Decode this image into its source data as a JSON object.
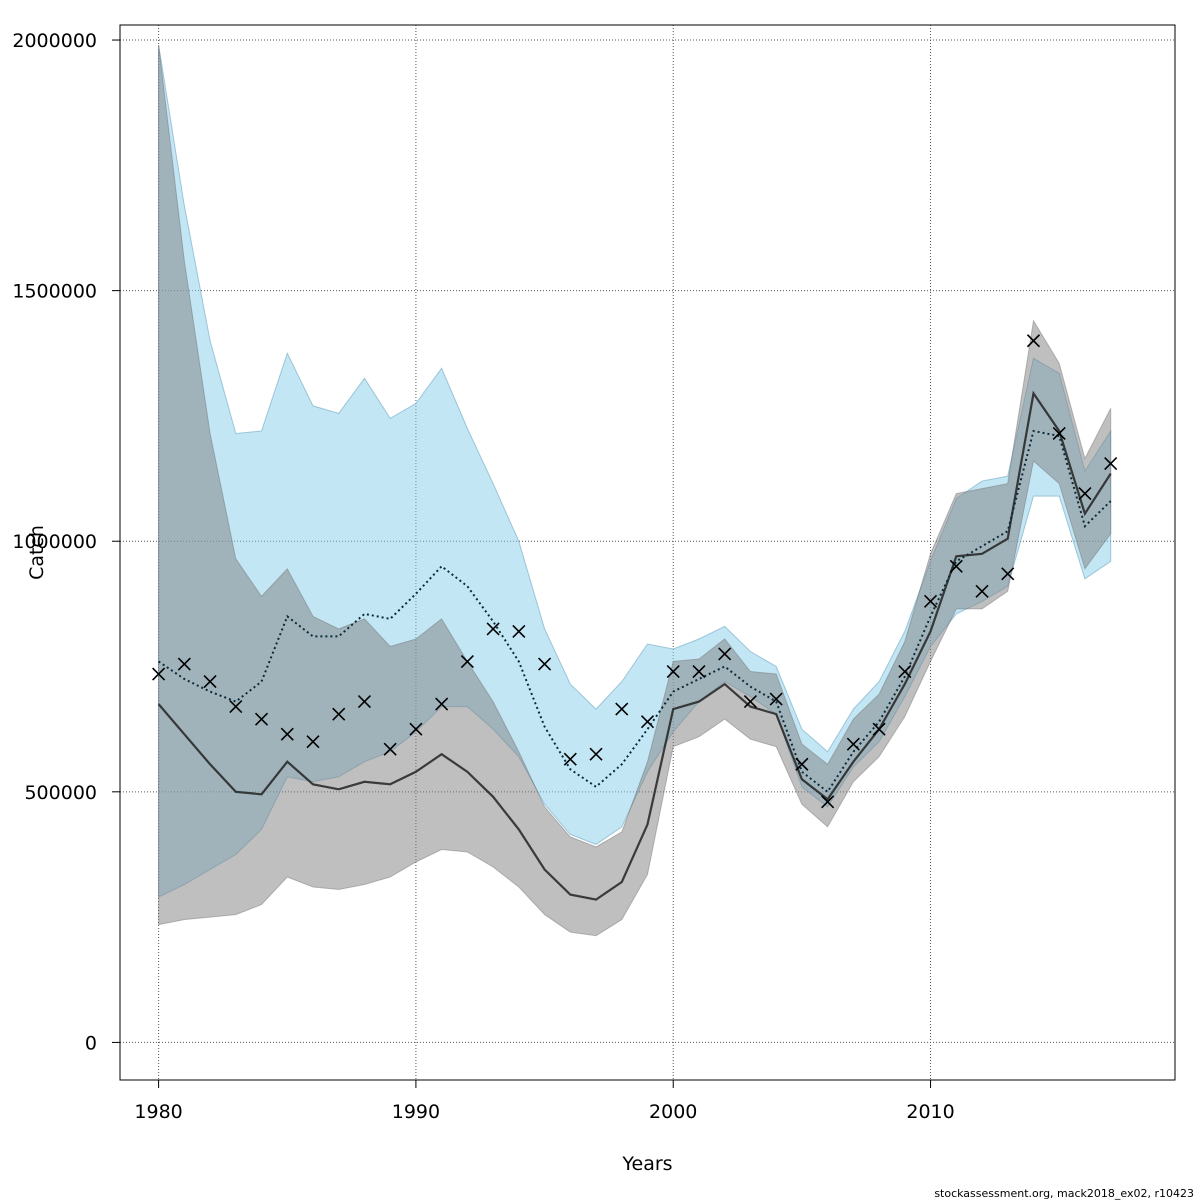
{
  "chart_data": {
    "type": "line",
    "xlabel": "Years",
    "ylabel": "Catch",
    "xlim": [
      1978.5,
      2019.5
    ],
    "ylim": [
      -75000,
      2030000
    ],
    "x_ticks": [
      1980,
      1990,
      2000,
      2010
    ],
    "y_ticks": [
      0,
      500000,
      1000000,
      1500000,
      2000000
    ],
    "y_tick_labels": [
      "0",
      "500000",
      "1000000",
      "1500000",
      "2000000"
    ],
    "grid": true,
    "colors": {
      "blue_band": "#87CEEB",
      "grey_band": "#808080",
      "dotted_line": "#0a2a3a",
      "solid_line": "#222222",
      "observed": "#000000"
    },
    "years": [
      1980,
      1981,
      1982,
      1983,
      1984,
      1985,
      1986,
      1987,
      1988,
      1989,
      1990,
      1991,
      1992,
      1993,
      1994,
      1995,
      1996,
      1997,
      1998,
      1999,
      2000,
      2001,
      2002,
      2003,
      2004,
      2005,
      2006,
      2007,
      2008,
      2009,
      2010,
      2011,
      2012,
      2013,
      2014,
      2015,
      2016,
      2017
    ],
    "series": [
      {
        "style": "dotted",
        "values": [
          760000,
          725000,
          700000,
          680000,
          720000,
          850000,
          810000,
          810000,
          855000,
          845000,
          895000,
          950000,
          910000,
          840000,
          760000,
          630000,
          545000,
          510000,
          555000,
          625000,
          700000,
          725000,
          750000,
          710000,
          680000,
          540000,
          500000,
          580000,
          640000,
          730000,
          850000,
          960000,
          990000,
          1020000,
          1220000,
          1210000,
          1030000,
          1080000
        ],
        "lower": [
          290000,
          315000,
          345000,
          375000,
          425000,
          530000,
          520000,
          530000,
          560000,
          580000,
          620000,
          670000,
          670000,
          625000,
          570000,
          475000,
          415000,
          395000,
          430000,
          540000,
          620000,
          680000,
          720000,
          690000,
          655000,
          510000,
          470000,
          550000,
          600000,
          690000,
          790000,
          855000,
          880000,
          910000,
          1090000,
          1090000,
          925000,
          960000
        ],
        "upper": [
          1990000,
          1670000,
          1400000,
          1215000,
          1220000,
          1375000,
          1270000,
          1255000,
          1325000,
          1245000,
          1275000,
          1345000,
          1225000,
          1115000,
          1000000,
          825000,
          715000,
          665000,
          720000,
          795000,
          785000,
          805000,
          830000,
          780000,
          750000,
          625000,
          580000,
          665000,
          720000,
          820000,
          960000,
          1085000,
          1120000,
          1130000,
          1365000,
          1335000,
          1140000,
          1220000
        ]
      },
      {
        "style": "solid",
        "values": [
          675000,
          615000,
          555000,
          500000,
          495000,
          560000,
          515000,
          505000,
          520000,
          515000,
          540000,
          575000,
          540000,
          490000,
          425000,
          345000,
          295000,
          285000,
          320000,
          435000,
          665000,
          680000,
          715000,
          670000,
          655000,
          525000,
          485000,
          560000,
          625000,
          715000,
          820000,
          970000,
          975000,
          1005000,
          1295000,
          1220000,
          1055000,
          1135000
        ],
        "lower": [
          235000,
          245000,
          250000,
          255000,
          275000,
          330000,
          310000,
          305000,
          315000,
          330000,
          360000,
          385000,
          380000,
          350000,
          310000,
          255000,
          220000,
          213000,
          245000,
          335000,
          590000,
          610000,
          645000,
          605000,
          590000,
          475000,
          430000,
          520000,
          570000,
          650000,
          760000,
          865000,
          865000,
          900000,
          1160000,
          1115000,
          945000,
          1015000
        ],
        "upper": [
          1990000,
          1560000,
          1215000,
          965000,
          890000,
          945000,
          850000,
          825000,
          845000,
          790000,
          805000,
          845000,
          760000,
          680000,
          580000,
          470000,
          410000,
          390000,
          420000,
          560000,
          760000,
          765000,
          805000,
          740000,
          735000,
          595000,
          555000,
          645000,
          695000,
          800000,
          975000,
          1095000,
          1105000,
          1115000,
          1440000,
          1355000,
          1165000,
          1265000
        ]
      }
    ],
    "observed": [
      735000,
      755000,
      720000,
      670000,
      645000,
      615000,
      600000,
      655000,
      680000,
      585000,
      625000,
      675000,
      760000,
      825000,
      820000,
      755000,
      565000,
      575000,
      665000,
      640000,
      740000,
      740000,
      775000,
      680000,
      685000,
      555000,
      480000,
      595000,
      625000,
      740000,
      880000,
      950000,
      900000,
      935000,
      1400000,
      1215000,
      1095000,
      1155000
    ]
  },
  "footer": {
    "text": "stockassessment.org, mack2018_ex02, r10423"
  }
}
